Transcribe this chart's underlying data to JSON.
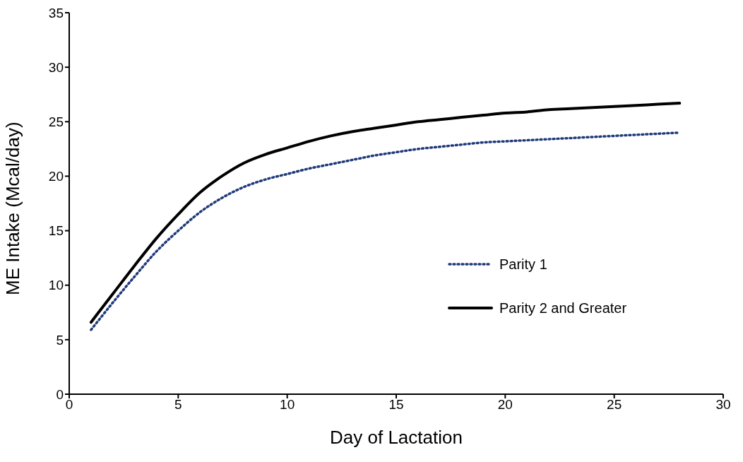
{
  "chart_data": {
    "type": "line",
    "xlabel": "Day of Lactation",
    "ylabel": "ME  Intake  (Mcal/day)",
    "x": [
      1,
      2,
      3,
      4,
      5,
      6,
      7,
      8,
      9,
      10,
      11,
      12,
      13,
      14,
      15,
      16,
      17,
      18,
      19,
      20,
      21,
      22,
      23,
      24,
      25,
      26,
      27,
      28
    ],
    "series": [
      {
        "name": "Parity 1",
        "color": "#1f3a7a",
        "line_style": "dotted",
        "values": [
          5.9,
          8.4,
          10.8,
          13.1,
          15.0,
          16.7,
          18.0,
          19.0,
          19.7,
          20.2,
          20.7,
          21.1,
          21.5,
          21.9,
          22.2,
          22.5,
          22.7,
          22.9,
          23.1,
          23.2,
          23.3,
          23.4,
          23.5,
          23.6,
          23.7,
          23.8,
          23.9,
          24.0
        ]
      },
      {
        "name": "Parity 2 and Greater",
        "color": "#000000",
        "line_style": "solid",
        "values": [
          6.6,
          9.2,
          11.8,
          14.3,
          16.5,
          18.5,
          20.0,
          21.2,
          22.0,
          22.6,
          23.2,
          23.7,
          24.1,
          24.4,
          24.7,
          25.0,
          25.2,
          25.4,
          25.6,
          25.8,
          25.9,
          26.1,
          26.2,
          26.3,
          26.4,
          26.5,
          26.6,
          26.7
        ]
      }
    ],
    "xlim": [
      0,
      30
    ],
    "xticks": [
      0,
      5,
      10,
      15,
      20,
      25,
      30
    ],
    "ylim": [
      0,
      35
    ],
    "yticks": [
      0,
      5,
      10,
      15,
      20,
      25,
      30,
      35
    ],
    "grid": false,
    "legend": "right",
    "marker": "none"
  }
}
